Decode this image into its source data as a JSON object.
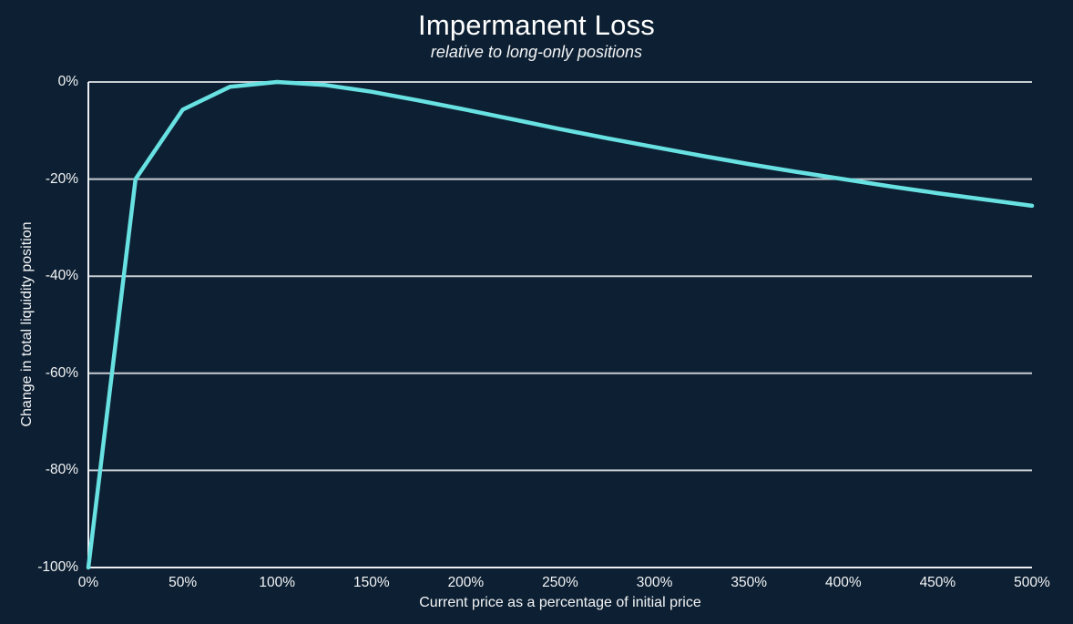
{
  "header": {
    "title": "Impermanent Loss",
    "subtitle": "relative to long-only positions"
  },
  "colors": {
    "background": "#0d2033",
    "grid": "#c7ccd3",
    "axis": "#edeff2",
    "curve": "#68e1e2",
    "text": "#f3f4f6",
    "title_text": "#ffffff"
  },
  "chart_data": {
    "type": "line",
    "title": "Impermanent Loss",
    "subtitle": "relative to long-only positions",
    "xlabel": "Current price as a percentage of initial price",
    "ylabel": "Change in total liquidity position",
    "xlim": [
      0,
      500
    ],
    "ylim": [
      -100,
      0
    ],
    "grid": "horizontal-only",
    "legend": "none",
    "x_ticks": {
      "values": [
        0,
        50,
        100,
        150,
        200,
        250,
        300,
        350,
        400,
        450,
        500
      ],
      "labels": [
        "0%",
        "50%",
        "100%",
        "150%",
        "200%",
        "250%",
        "300%",
        "350%",
        "400%",
        "450%",
        "500%"
      ]
    },
    "y_ticks": {
      "values": [
        0,
        -20,
        -40,
        -60,
        -80,
        -100
      ],
      "labels": [
        "0%",
        "-20%",
        "-40%",
        "-60%",
        "-80%",
        "-100%"
      ]
    },
    "series": [
      {
        "name": "impermanent-loss",
        "color": "#68e1e2",
        "x": [
          0,
          25,
          50,
          75,
          100,
          125,
          150,
          175,
          200,
          225,
          250,
          275,
          300,
          325,
          350,
          375,
          400,
          425,
          450,
          475,
          500
        ],
        "y": [
          -100,
          -20,
          -5.7,
          -1,
          0,
          -0.6,
          -2,
          -3.8,
          -5.7,
          -7.7,
          -9.7,
          -11.6,
          -13.4,
          -15.2,
          -16.9,
          -18.5,
          -20,
          -21.5,
          -22.9,
          -24.2,
          -25.5
        ]
      }
    ]
  }
}
